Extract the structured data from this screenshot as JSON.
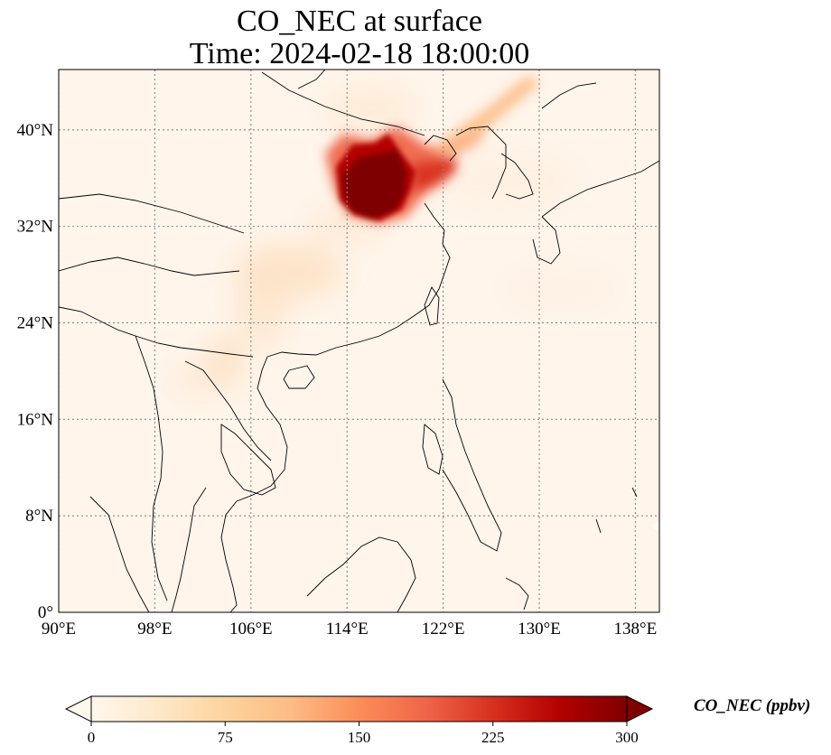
{
  "title": "CO_NEC at surface",
  "subtitle": "Time: 2024-02-18 18:00:00",
  "map": {
    "extent": {
      "lon_min": 90,
      "lon_max": 140,
      "lat_min": 0,
      "lat_max": 45
    },
    "lon_ticks": [
      90,
      98,
      106,
      114,
      122,
      130,
      138
    ],
    "lat_ticks": [
      0,
      8,
      16,
      24,
      32,
      40
    ],
    "lon_tick_labels": [
      "90°E",
      "98°E",
      "106°E",
      "114°E",
      "122°E",
      "130°E",
      "138°E"
    ],
    "lat_tick_labels": [
      "0°",
      "8°N",
      "16°N",
      "24°N",
      "32°N",
      "40°N"
    ],
    "gridlines": true,
    "colormap": "OrRd",
    "plume_core_color": "#7f0000",
    "background_color": "#fff5eb"
  },
  "colorbar": {
    "label": "CO_NEC (ppbv)",
    "min": 0,
    "max": 300,
    "ticks": [
      "0",
      "75",
      "150",
      "225",
      "300"
    ],
    "extend": "both",
    "colors": [
      "#fff7ec",
      "#fee8c8",
      "#fdd49e",
      "#fdbb84",
      "#fc8d59",
      "#ef6548",
      "#d7301f",
      "#b30000",
      "#7f0000"
    ]
  }
}
